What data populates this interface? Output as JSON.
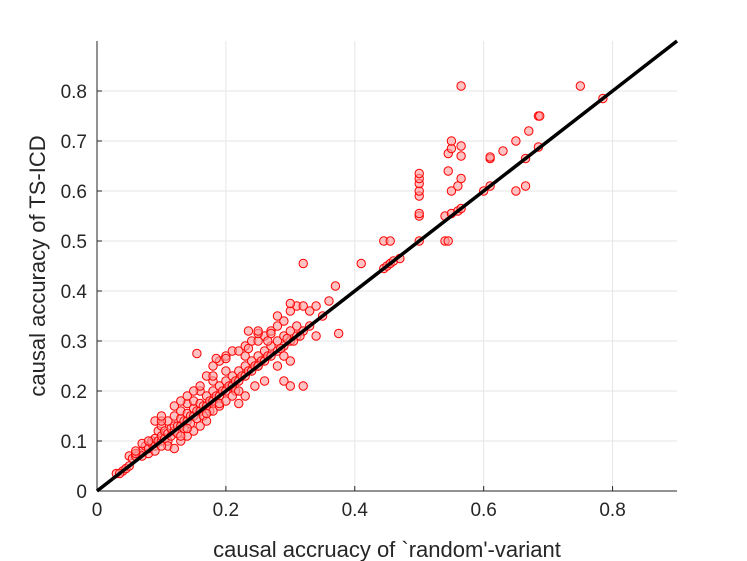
{
  "chart_data": {
    "type": "scatter",
    "title": "",
    "xlabel": "causal accruacy of `random'-variant",
    "ylabel": "causal accuracy of TS-ICD",
    "xlim": [
      0,
      0.9
    ],
    "ylim": [
      0,
      0.9
    ],
    "xticks": [
      0,
      0.2,
      0.4,
      0.6,
      0.8
    ],
    "yticks": [
      0,
      0.1,
      0.2,
      0.3,
      0.4,
      0.5,
      0.6,
      0.7,
      0.8
    ],
    "xtick_labels": [
      "0",
      "0.2",
      "0.4",
      "0.6",
      "0.8"
    ],
    "ytick_labels": [
      "0",
      "0.1",
      "0.2",
      "0.3",
      "0.4",
      "0.5",
      "0.6",
      "0.7",
      "0.8"
    ],
    "grid": true,
    "legend": "none",
    "reference_line": {
      "x": [
        0,
        0.9
      ],
      "y": [
        0,
        0.9
      ],
      "color": "#000000"
    },
    "series": [
      {
        "marker": "circle",
        "edge_color": "#ff0000",
        "fill_color": "#ff9999",
        "points": [
          [
            0.03,
            0.035
          ],
          [
            0.04,
            0.04
          ],
          [
            0.05,
            0.07
          ],
          [
            0.055,
            0.065
          ],
          [
            0.06,
            0.07
          ],
          [
            0.065,
            0.075
          ],
          [
            0.07,
            0.08
          ],
          [
            0.07,
            0.07
          ],
          [
            0.075,
            0.09
          ],
          [
            0.08,
            0.075
          ],
          [
            0.08,
            0.085
          ],
          [
            0.085,
            0.095
          ],
          [
            0.085,
            0.1
          ],
          [
            0.09,
            0.09
          ],
          [
            0.09,
            0.105
          ],
          [
            0.095,
            0.1
          ],
          [
            0.095,
            0.12
          ],
          [
            0.1,
            0.1
          ],
          [
            0.1,
            0.11
          ],
          [
            0.1,
            0.13
          ],
          [
            0.105,
            0.105
          ],
          [
            0.105,
            0.12
          ],
          [
            0.11,
            0.115
          ],
          [
            0.11,
            0.1
          ],
          [
            0.11,
            0.14
          ],
          [
            0.115,
            0.11
          ],
          [
            0.115,
            0.125
          ],
          [
            0.12,
            0.12
          ],
          [
            0.12,
            0.13
          ],
          [
            0.12,
            0.15
          ],
          [
            0.125,
            0.13
          ],
          [
            0.125,
            0.115
          ],
          [
            0.13,
            0.13
          ],
          [
            0.13,
            0.145
          ],
          [
            0.13,
            0.16
          ],
          [
            0.135,
            0.14
          ],
          [
            0.135,
            0.125
          ],
          [
            0.14,
            0.14
          ],
          [
            0.14,
            0.155
          ],
          [
            0.14,
            0.175
          ],
          [
            0.145,
            0.15
          ],
          [
            0.145,
            0.135
          ],
          [
            0.15,
            0.15
          ],
          [
            0.15,
            0.165
          ],
          [
            0.15,
            0.18
          ],
          [
            0.155,
            0.16
          ],
          [
            0.155,
            0.145
          ],
          [
            0.16,
            0.16
          ],
          [
            0.16,
            0.175
          ],
          [
            0.16,
            0.2
          ],
          [
            0.165,
            0.17
          ],
          [
            0.165,
            0.15
          ],
          [
            0.17,
            0.17
          ],
          [
            0.17,
            0.19
          ],
          [
            0.175,
            0.18
          ],
          [
            0.175,
            0.16
          ],
          [
            0.18,
            0.18
          ],
          [
            0.18,
            0.2
          ],
          [
            0.18,
            0.22
          ],
          [
            0.185,
            0.19
          ],
          [
            0.19,
            0.19
          ],
          [
            0.19,
            0.21
          ],
          [
            0.19,
            0.17
          ],
          [
            0.195,
            0.2
          ],
          [
            0.2,
            0.2
          ],
          [
            0.2,
            0.22
          ],
          [
            0.2,
            0.24
          ],
          [
            0.205,
            0.21
          ],
          [
            0.21,
            0.21
          ],
          [
            0.21,
            0.23
          ],
          [
            0.215,
            0.22
          ],
          [
            0.215,
            0.2
          ],
          [
            0.22,
            0.22
          ],
          [
            0.22,
            0.24
          ],
          [
            0.225,
            0.23
          ],
          [
            0.23,
            0.23
          ],
          [
            0.23,
            0.25
          ],
          [
            0.23,
            0.27
          ],
          [
            0.235,
            0.24
          ],
          [
            0.24,
            0.24
          ],
          [
            0.24,
            0.26
          ],
          [
            0.245,
            0.25
          ],
          [
            0.25,
            0.25
          ],
          [
            0.25,
            0.27
          ],
          [
            0.255,
            0.26
          ],
          [
            0.26,
            0.26
          ],
          [
            0.26,
            0.28
          ],
          [
            0.265,
            0.27
          ],
          [
            0.27,
            0.27
          ],
          [
            0.27,
            0.29
          ],
          [
            0.28,
            0.28
          ],
          [
            0.28,
            0.3
          ],
          [
            0.29,
            0.29
          ],
          [
            0.29,
            0.31
          ],
          [
            0.3,
            0.3
          ],
          [
            0.3,
            0.32
          ],
          [
            0.31,
            0.31
          ],
          [
            0.31,
            0.33
          ],
          [
            0.32,
            0.32
          ],
          [
            0.33,
            0.33
          ],
          [
            0.09,
            0.14
          ],
          [
            0.1,
            0.14
          ],
          [
            0.1,
            0.15
          ],
          [
            0.12,
            0.17
          ],
          [
            0.13,
            0.18
          ],
          [
            0.14,
            0.19
          ],
          [
            0.15,
            0.2
          ],
          [
            0.16,
            0.21
          ],
          [
            0.17,
            0.23
          ],
          [
            0.18,
            0.25
          ],
          [
            0.19,
            0.26
          ],
          [
            0.2,
            0.27
          ],
          [
            0.21,
            0.28
          ],
          [
            0.22,
            0.28
          ],
          [
            0.23,
            0.29
          ],
          [
            0.24,
            0.3
          ],
          [
            0.25,
            0.3
          ],
          [
            0.26,
            0.31
          ],
          [
            0.27,
            0.32
          ],
          [
            0.28,
            0.33
          ],
          [
            0.29,
            0.34
          ],
          [
            0.3,
            0.36
          ],
          [
            0.31,
            0.37
          ],
          [
            0.32,
            0.37
          ],
          [
            0.33,
            0.36
          ],
          [
            0.34,
            0.37
          ],
          [
            0.35,
            0.35
          ],
          [
            0.36,
            0.38
          ],
          [
            0.37,
            0.41
          ],
          [
            0.32,
            0.455
          ],
          [
            0.155,
            0.275
          ],
          [
            0.18,
            0.23
          ],
          [
            0.185,
            0.265
          ],
          [
            0.2,
            0.265
          ],
          [
            0.235,
            0.285
          ],
          [
            0.25,
            0.315
          ],
          [
            0.27,
            0.315
          ],
          [
            0.28,
            0.35
          ],
          [
            0.3,
            0.375
          ],
          [
            0.235,
            0.32
          ],
          [
            0.25,
            0.32
          ],
          [
            0.265,
            0.3
          ],
          [
            0.285,
            0.285
          ],
          [
            0.295,
            0.305
          ],
          [
            0.305,
            0.3
          ],
          [
            0.315,
            0.31
          ],
          [
            0.34,
            0.31
          ],
          [
            0.375,
            0.315
          ],
          [
            0.19,
            0.175
          ],
          [
            0.22,
            0.175
          ],
          [
            0.23,
            0.19
          ],
          [
            0.245,
            0.21
          ],
          [
            0.26,
            0.22
          ],
          [
            0.29,
            0.22
          ],
          [
            0.3,
            0.21
          ],
          [
            0.32,
            0.21
          ],
          [
            0.25,
            0.25
          ],
          [
            0.28,
            0.25
          ],
          [
            0.29,
            0.27
          ],
          [
            0.3,
            0.26
          ],
          [
            0.13,
            0.1
          ],
          [
            0.14,
            0.11
          ],
          [
            0.15,
            0.12
          ],
          [
            0.16,
            0.13
          ],
          [
            0.17,
            0.14
          ],
          [
            0.18,
            0.16
          ],
          [
            0.17,
            0.155
          ],
          [
            0.2,
            0.18
          ],
          [
            0.21,
            0.19
          ],
          [
            0.22,
            0.2
          ],
          [
            0.11,
            0.09
          ],
          [
            0.12,
            0.085
          ],
          [
            0.13,
            0.11
          ],
          [
            0.14,
            0.125
          ],
          [
            0.06,
            0.075
          ],
          [
            0.07,
            0.095
          ],
          [
            0.08,
            0.1
          ],
          [
            0.09,
            0.08
          ],
          [
            0.1,
            0.09
          ],
          [
            0.06,
            0.08
          ],
          [
            0.41,
            0.455
          ],
          [
            0.445,
            0.445
          ],
          [
            0.45,
            0.45
          ],
          [
            0.455,
            0.455
          ],
          [
            0.46,
            0.46
          ],
          [
            0.47,
            0.465
          ],
          [
            0.445,
            0.5
          ],
          [
            0.455,
            0.5
          ],
          [
            0.5,
            0.5
          ],
          [
            0.5,
            0.55
          ],
          [
            0.5,
            0.555
          ],
          [
            0.5,
            0.59
          ],
          [
            0.5,
            0.6
          ],
          [
            0.5,
            0.615
          ],
          [
            0.5,
            0.625
          ],
          [
            0.5,
            0.635
          ],
          [
            0.54,
            0.5
          ],
          [
            0.545,
            0.5
          ],
          [
            0.54,
            0.55
          ],
          [
            0.55,
            0.555
          ],
          [
            0.56,
            0.56
          ],
          [
            0.565,
            0.565
          ],
          [
            0.55,
            0.6
          ],
          [
            0.56,
            0.61
          ],
          [
            0.565,
            0.625
          ],
          [
            0.545,
            0.64
          ],
          [
            0.545,
            0.675
          ],
          [
            0.55,
            0.685
          ],
          [
            0.565,
            0.67
          ],
          [
            0.55,
            0.7
          ],
          [
            0.565,
            0.69
          ],
          [
            0.565,
            0.81
          ],
          [
            0.6,
            0.6
          ],
          [
            0.61,
            0.61
          ],
          [
            0.61,
            0.665
          ],
          [
            0.61,
            0.668
          ],
          [
            0.63,
            0.68
          ],
          [
            0.65,
            0.6
          ],
          [
            0.65,
            0.7
          ],
          [
            0.665,
            0.61
          ],
          [
            0.665,
            0.665
          ],
          [
            0.67,
            0.72
          ],
          [
            0.685,
            0.688
          ],
          [
            0.685,
            0.75
          ],
          [
            0.687,
            0.75
          ],
          [
            0.75,
            0.81
          ],
          [
            0.785,
            0.785
          ],
          [
            0.035,
            0.035
          ],
          [
            0.045,
            0.045
          ],
          [
            0.05,
            0.05
          ]
        ]
      }
    ]
  }
}
